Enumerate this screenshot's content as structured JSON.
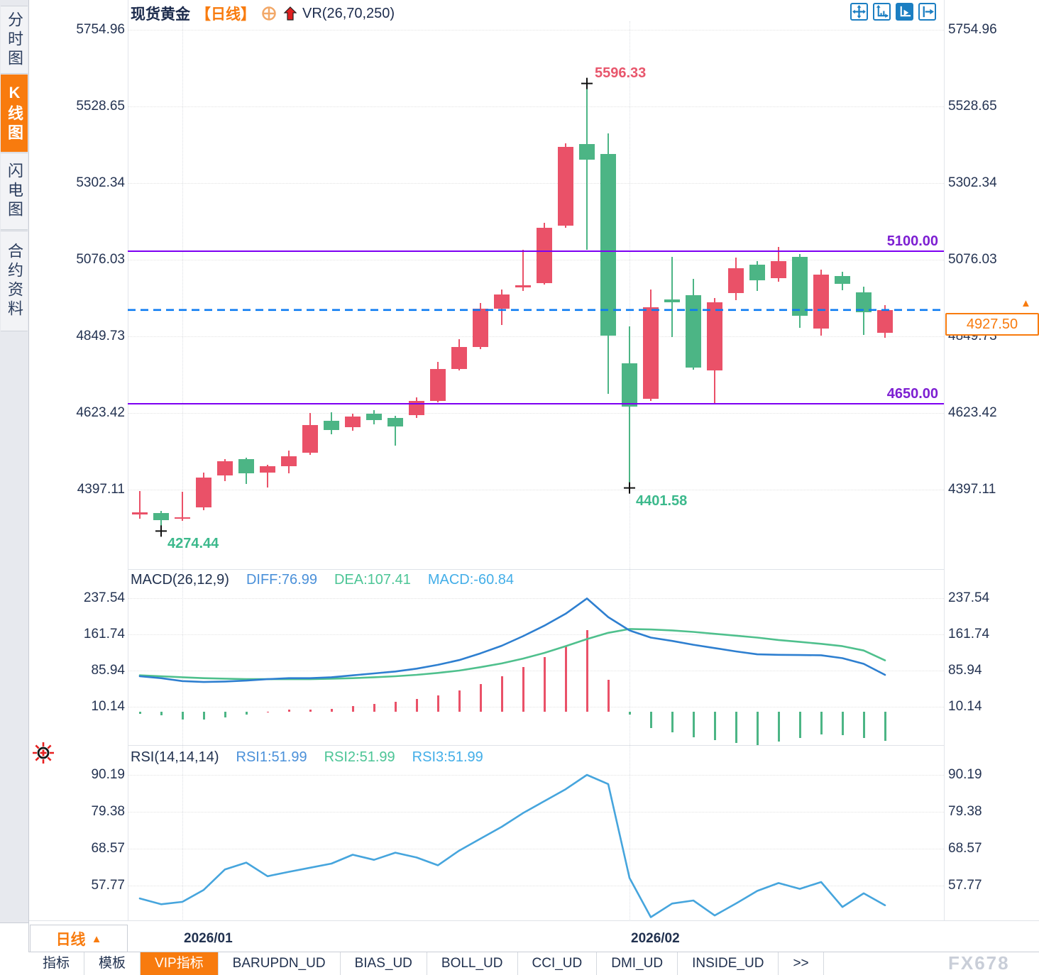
{
  "header": {
    "symbol": "现货黄金",
    "period_tag": "【日线】",
    "indicator_label": "VR(26,70,250)"
  },
  "sidebar": {
    "tabs": [
      {
        "label": "分时图",
        "active": false
      },
      {
        "label": "K线图",
        "active": true
      },
      {
        "label": "闪电图",
        "active": false
      },
      {
        "label": "合约资料",
        "active": false
      }
    ]
  },
  "toolbar_icons": [
    "move-crosshair-icon",
    "axis-scale-icon",
    "axis-autoscale-icon",
    "exit-right-icon"
  ],
  "colors": {
    "up_candle": "#ea5168",
    "down_candle": "#4cb585",
    "accent_orange": "#f87b0e",
    "support_resistance_purple": "#7d00f2",
    "current_price_blue": "#0c7bf2",
    "diff_line_blue": "#2e7fd0",
    "dea_line_green": "#4fc08d",
    "rsi_line_blue": "#46a5dd",
    "axis_text_navy": "#243352"
  },
  "chart_data": {
    "type": "candlestick-with-indicators",
    "title": "现货黄金 日线",
    "legend_position": "top-left",
    "grid": true,
    "x_labels": [
      {
        "label": "2026/01",
        "index": 2
      },
      {
        "label": "2026/02",
        "index": 23
      }
    ],
    "price_axis": {
      "ticks": [
        5754.96,
        5528.65,
        5302.34,
        5076.03,
        4849.73,
        4623.42,
        4397.11
      ],
      "range": [
        4170,
        5843
      ]
    },
    "candles_ohlc": [
      [
        4324,
        4393,
        4310,
        4329
      ],
      [
        4327,
        4333,
        4274.44,
        4306
      ],
      [
        4310,
        4391,
        4305,
        4316
      ],
      [
        4345,
        4447,
        4336,
        4433
      ],
      [
        4439,
        4486,
        4422,
        4481
      ],
      [
        4487,
        4491,
        4413,
        4445
      ],
      [
        4447,
        4471,
        4402,
        4466
      ],
      [
        4466,
        4512,
        4445,
        4496
      ],
      [
        4506,
        4623,
        4500,
        4588
      ],
      [
        4601,
        4626,
        4561,
        4572
      ],
      [
        4582,
        4620,
        4570,
        4613
      ],
      [
        4622,
        4632,
        4590,
        4603
      ],
      [
        4609,
        4615,
        4527,
        4584
      ],
      [
        4617,
        4669,
        4609,
        4659
      ],
      [
        4659,
        4774,
        4655,
        4753
      ],
      [
        4753,
        4841,
        4748,
        4818
      ],
      [
        4818,
        4948,
        4812,
        4931
      ],
      [
        4931,
        4988,
        4883,
        4973
      ],
      [
        4994,
        5105,
        4983,
        5000
      ],
      [
        5007,
        5185,
        5003,
        5170
      ],
      [
        5176,
        5420,
        5170,
        5409
      ],
      [
        5417,
        5596.33,
        5105,
        5371
      ],
      [
        5388,
        5449,
        4680,
        4852
      ],
      [
        4770,
        4878,
        4401.58,
        4642
      ],
      [
        4665,
        4988,
        4658,
        4935
      ],
      [
        4958,
        5084,
        4848,
        4950
      ],
      [
        4971,
        5019,
        4751,
        4757
      ],
      [
        4749,
        4963,
        4648,
        4950
      ],
      [
        4977,
        5082,
        4956,
        5051
      ],
      [
        5061,
        5072,
        4984,
        5015
      ],
      [
        5021,
        5113,
        5011,
        5072
      ],
      [
        5084,
        5092,
        4875,
        4910
      ],
      [
        4873,
        5047,
        4851,
        5032
      ],
      [
        5028,
        5040,
        4985,
        5004
      ],
      [
        4980,
        4996,
        4853,
        4921
      ],
      [
        4860,
        4941,
        4846,
        4927.5
      ]
    ],
    "annotations": {
      "high": {
        "index": 21,
        "value": 5596.33,
        "label": "5596.33"
      },
      "lows": [
        {
          "index": 1,
          "value": 4274.44,
          "label": "4274.44"
        },
        {
          "index": 23,
          "value": 4401.58,
          "label": "4401.58"
        }
      ]
    },
    "hlines": [
      {
        "value": 5100,
        "label": "5100.00"
      },
      {
        "value": 4650,
        "label": "4650.00"
      }
    ],
    "current_price": {
      "value": 4927.5,
      "label": "4927.50",
      "arrow": "▲"
    },
    "macd": {
      "title": "MACD(26,12,9)",
      "diff_label": "DIFF:76.99",
      "dea_label": "DEA:107.41",
      "macd_label": "MACD:-60.84",
      "ticks": [
        237.54,
        161.74,
        85.94,
        10.14
      ],
      "diff": [
        74,
        70,
        64,
        62,
        63,
        65,
        68,
        70,
        70,
        72,
        76,
        80,
        84,
        90,
        98,
        108,
        122,
        138,
        158,
        180,
        205,
        237,
        198,
        170,
        155,
        148,
        140,
        133,
        126,
        120,
        119,
        118.5,
        118,
        112,
        100,
        76.99
      ],
      "dea": [
        76,
        74,
        72,
        70,
        69,
        68,
        68,
        68,
        68,
        69,
        70,
        72,
        74,
        77,
        81,
        86,
        93,
        101,
        111,
        123,
        137,
        152,
        165,
        173,
        172,
        170,
        167,
        163,
        159,
        155,
        150,
        146,
        142,
        137,
        128,
        107.41
      ],
      "histogram_rule": "2*(diff-dea)"
    },
    "rsi": {
      "title": "RSI(14,14,14)",
      "series_labels": [
        "RSI1:51.99",
        "RSI2:51.99",
        "RSI3:51.99"
      ],
      "ticks": [
        90.19,
        79.38,
        68.57,
        57.77
      ],
      "values": [
        54,
        52.3,
        53,
        56.5,
        62.5,
        64.5,
        60.5,
        61.8,
        63,
        64.2,
        66.8,
        65.3,
        67.4,
        66,
        63.7,
        68,
        71.5,
        75,
        79,
        82.5,
        86,
        90.2,
        87.5,
        60,
        48.5,
        52.5,
        53.4,
        49,
        52.5,
        56.2,
        58.5,
        56.8,
        58.8,
        51.5,
        55.5,
        52
      ]
    }
  },
  "bottom": {
    "period_button": "日线",
    "period_button_arrow": "▲",
    "tabs": [
      {
        "label": "指标",
        "active": false
      },
      {
        "label": "模板",
        "active": false
      },
      {
        "label": "VIP指标",
        "active": true
      },
      {
        "label": "BARUPDN_UD",
        "active": false
      },
      {
        "label": "BIAS_UD",
        "active": false
      },
      {
        "label": "BOLL_UD",
        "active": false
      },
      {
        "label": "CCI_UD",
        "active": false
      },
      {
        "label": "DMI_UD",
        "active": false
      },
      {
        "label": "INSIDE_UD",
        "active": false
      },
      {
        "label": ">>",
        "active": false
      }
    ],
    "watermark": "FX678"
  }
}
